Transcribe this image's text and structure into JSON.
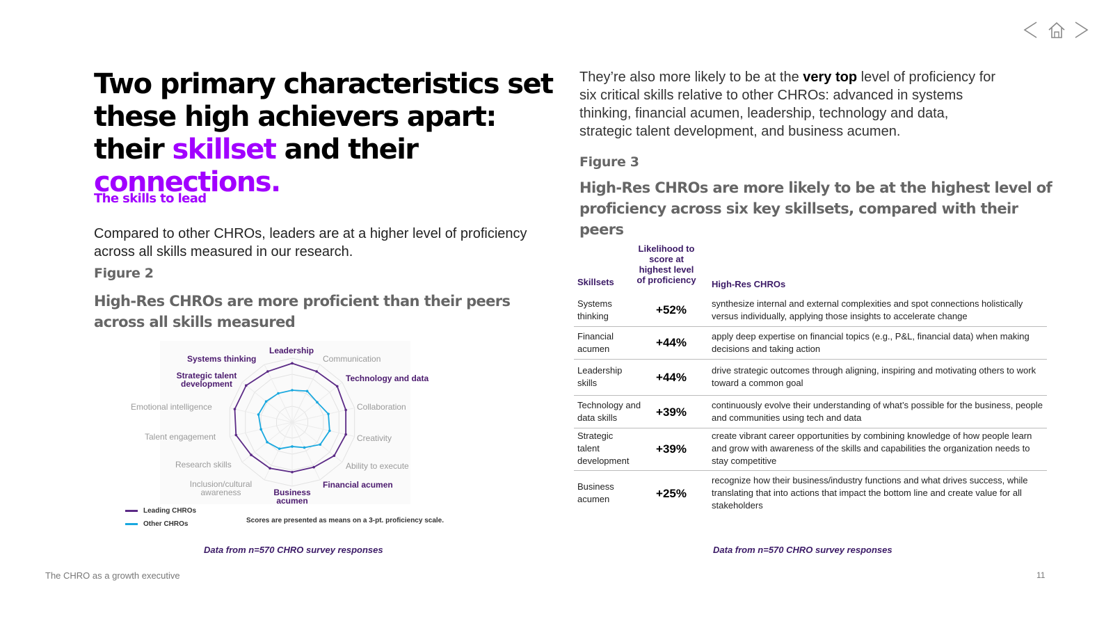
{
  "nav": {
    "prev_icon": "chevron-left-icon",
    "home_icon": "home-icon",
    "next_icon": "chevron-right-icon"
  },
  "left": {
    "title_part1": "Two primary characteristics set these high achievers apart: their ",
    "title_highlight1": "skillset",
    "title_part2": " and their ",
    "title_highlight2": "connections.",
    "section_heading": "The skills to lead",
    "intro": "Compared to other CHROs, leaders are at a higher level of proficiency across all skills measured in our research.",
    "figure_label": "Figure 2",
    "figure_title": "High-Res CHROs are more proficient than their peers across all skills measured",
    "score_note": "Scores are presented as means on a 3-pt. proficiency scale.",
    "source": "Data from n=570 CHRO survey responses"
  },
  "chart_data": {
    "type": "radar",
    "categories": [
      "Leadership",
      "Communication",
      "Technology and data",
      "Collaboration",
      "Creativity",
      "Ability to execute",
      "Financial acumen",
      "Business acumen",
      "Inclusion/cultural awareness",
      "Research skills",
      "Talent engagement",
      "Emotional intelligence",
      "Strategic talent development",
      "Systems thinking"
    ],
    "highlighted_categories": [
      "Leadership",
      "Technology and data",
      "Financial acumen",
      "Business acumen",
      "Strategic talent development",
      "Systems thinking"
    ],
    "series": [
      {
        "name": "Leading CHROs",
        "color": "#5b2a86",
        "values": [
          0.92,
          0.88,
          0.9,
          0.86,
          0.86,
          0.84,
          0.78,
          0.78,
          0.8,
          0.82,
          0.9,
          0.92,
          0.92,
          0.88
        ]
      },
      {
        "name": "Other CHROs",
        "color": "#19a8df",
        "values": [
          0.5,
          0.54,
          0.5,
          0.58,
          0.6,
          0.56,
          0.44,
          0.38,
          0.46,
          0.5,
          0.5,
          0.54,
          0.52,
          0.5
        ]
      }
    ]
  },
  "right": {
    "intro_part1": "They’re also more likely to be at the ",
    "intro_bold": "very top",
    "intro_part2": " level of proficiency for six critical skills relative to other CHROs: advanced in systems thinking, financial acumen, leadership, technology and data, strategic talent development, and business acumen.",
    "figure_label": "Figure 3",
    "figure_title": "High-Res CHROs are more likely to be at the highest level of proficiency across six key skillsets, compared with their peers",
    "table": {
      "headers": {
        "skillsets": "Skillsets",
        "likelihood": "Likelihood to score at highest level of proficiency",
        "high_res": "High-Res CHROs"
      },
      "rows": [
        {
          "skill": "Systems thinking",
          "pct": "+52%",
          "desc": "synthesize internal and external complexities and spot connections holistically versus individually, applying those insights to accelerate change"
        },
        {
          "skill": "Financial acumen",
          "pct": "+44%",
          "desc": "apply deep expertise on financial topics (e.g., P&L, financial data) when making decisions and taking action"
        },
        {
          "skill": "Leadership skills",
          "pct": "+44%",
          "desc": "drive strategic outcomes through aligning, inspiring and motivating others to work toward a common goal"
        },
        {
          "skill": "Technology and data skills",
          "pct": "+39%",
          "desc": "continuously evolve their understanding of what’s possible for the business, people and communities using tech and data"
        },
        {
          "skill": "Strategic talent development",
          "pct": "+39%",
          "desc": "create vibrant career opportunities by combining knowledge of how people learn and grow with awareness of the skills and capabilities the organization needs to stay competitive"
        },
        {
          "skill": "Business acumen",
          "pct": "+25%",
          "desc": "recognize how their business/industry functions and what drives success, while translating that into actions that impact the bottom line and create value for all stakeholders"
        }
      ]
    },
    "source": "Data from n=570 CHRO survey responses"
  },
  "footer": {
    "left": "The CHRO as a growth executive",
    "page": "11"
  }
}
